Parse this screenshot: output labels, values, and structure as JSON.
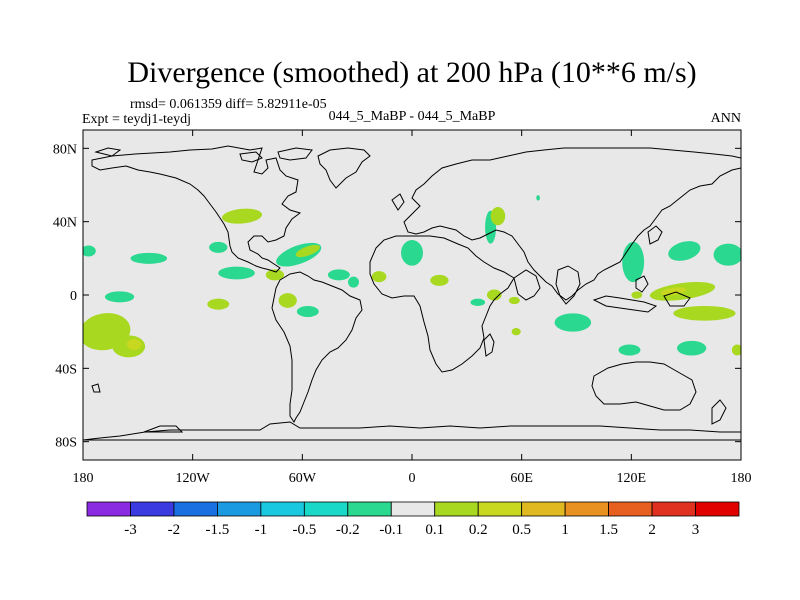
{
  "chart_data": {
    "type": "heatmap",
    "title": "Divergence (smoothed) at 200 hPa (10**6 m/s)",
    "stats_text": "rmsd= 0.061359 diff= 5.82911e-05",
    "experiment_text": "Expt = teydj1-teydj",
    "case_text": "044_5_MaBP - 044_5_MaBP",
    "season_text": "ANN",
    "projection": "cylindrical equidistant",
    "xlim": [
      -180,
      180
    ],
    "ylim": [
      -90,
      90
    ],
    "x_ticks": [
      {
        "value": -180,
        "label": "180"
      },
      {
        "value": -120,
        "label": "120W"
      },
      {
        "value": -60,
        "label": "60W"
      },
      {
        "value": 0,
        "label": "0"
      },
      {
        "value": 60,
        "label": "60E"
      },
      {
        "value": 120,
        "label": "120E"
      },
      {
        "value": 180,
        "label": "180"
      }
    ],
    "y_ticks": [
      {
        "value": 80,
        "label": "80N"
      },
      {
        "value": 40,
        "label": "40N"
      },
      {
        "value": 0,
        "label": "0"
      },
      {
        "value": -40,
        "label": "40S"
      },
      {
        "value": -80,
        "label": "80S"
      }
    ],
    "levels": [
      "-3",
      "-2",
      "-1.5",
      "-1",
      "-0.5",
      "-0.2",
      "-0.1",
      "0.1",
      "0.2",
      "0.5",
      "1",
      "1.5",
      "2",
      "3"
    ],
    "colors": [
      "#8a2be2",
      "#3a3ae0",
      "#1a70e0",
      "#1a9ae0",
      "#1ac8e0",
      "#1ad8c8",
      "#2ad890",
      "#e8e8e8",
      "#a8d820",
      "#c8d820",
      "#e0b820",
      "#e89020",
      "#e86020",
      "#e03020",
      "#e00000"
    ],
    "background_color": "#e8e8e8",
    "regions": [
      {
        "lon": -93,
        "lat": 43,
        "rlon": 11,
        "rlat": 4,
        "rot": -5,
        "color": "#a8d820"
      },
      {
        "lon": -106,
        "lat": 26,
        "rlon": 5,
        "rlat": 3,
        "rot": 0,
        "color": "#2ad890"
      },
      {
        "lon": -62,
        "lat": 22,
        "rlon": 13,
        "rlat": 5,
        "rot": -20,
        "color": "#2ad890"
      },
      {
        "lon": -57,
        "lat": 24,
        "rlon": 7,
        "rlat": 2.5,
        "rot": -20,
        "color": "#a8d820"
      },
      {
        "lon": -144,
        "lat": 20,
        "rlon": 10,
        "rlat": 3,
        "rot": 0,
        "color": "#2ad890"
      },
      {
        "lon": -177,
        "lat": 24,
        "rlon": 4,
        "rlat": 3,
        "rot": 0,
        "color": "#2ad890"
      },
      {
        "lon": -96,
        "lat": 12,
        "rlon": 10,
        "rlat": 3.5,
        "rot": 0,
        "color": "#2ad890"
      },
      {
        "lon": -75,
        "lat": 11,
        "rlon": 5,
        "rlat": 3,
        "rot": 0,
        "color": "#a8d820"
      },
      {
        "lon": -40,
        "lat": 11,
        "rlon": 6,
        "rlat": 3,
        "rot": 0,
        "color": "#2ad890"
      },
      {
        "lon": -32,
        "lat": 7,
        "rlon": 3,
        "rlat": 3,
        "rot": 0,
        "color": "#2ad890"
      },
      {
        "lon": -18,
        "lat": 10,
        "rlon": 4,
        "rlat": 3,
        "rot": 0,
        "color": "#a8d820"
      },
      {
        "lon": -160,
        "lat": -1,
        "rlon": 8,
        "rlat": 3,
        "rot": 0,
        "color": "#2ad890"
      },
      {
        "lon": -106,
        "lat": -5,
        "rlon": 6,
        "rlat": 3,
        "rot": 0,
        "color": "#a8d820"
      },
      {
        "lon": -68,
        "lat": -3,
        "rlon": 5,
        "rlat": 4,
        "rot": 0,
        "color": "#a8d820"
      },
      {
        "lon": -57,
        "lat": -9,
        "rlon": 6,
        "rlat": 3,
        "rot": 0,
        "color": "#2ad890"
      },
      {
        "lon": -168,
        "lat": -20,
        "rlon": 14,
        "rlat": 10,
        "rot": -10,
        "color": "#a8d820"
      },
      {
        "lon": -155,
        "lat": -28,
        "rlon": 9,
        "rlat": 6,
        "rot": 0,
        "color": "#a8d820"
      },
      {
        "lon": -152,
        "lat": -27,
        "rlon": 4,
        "rlat": 3,
        "rot": 0,
        "color": "#c8d820"
      },
      {
        "lon": 0,
        "lat": 23,
        "rlon": 6,
        "rlat": 7,
        "rot": 0,
        "color": "#2ad890"
      },
      {
        "lon": 43,
        "lat": 37,
        "rlon": 3,
        "rlat": 9,
        "rot": 0,
        "color": "#2ad890"
      },
      {
        "lon": 47,
        "lat": 43,
        "rlon": 4,
        "rlat": 5,
        "rot": 0,
        "color": "#a8d820"
      },
      {
        "lon": 69,
        "lat": 53,
        "rlon": 1,
        "rlat": 1.5,
        "rot": 0,
        "color": "#2ad890"
      },
      {
        "lon": 15,
        "lat": 8,
        "rlon": 5,
        "rlat": 3,
        "rot": 0,
        "color": "#a8d820"
      },
      {
        "lon": 36,
        "lat": -4,
        "rlon": 4,
        "rlat": 2,
        "rot": 0,
        "color": "#2ad890"
      },
      {
        "lon": 45,
        "lat": 0,
        "rlon": 4,
        "rlat": 3,
        "rot": 0,
        "color": "#a8d820"
      },
      {
        "lon": 56,
        "lat": -3,
        "rlon": 3,
        "rlat": 2,
        "rot": 0,
        "color": "#a8d820"
      },
      {
        "lon": 88,
        "lat": -15,
        "rlon": 10,
        "rlat": 5,
        "rot": 0,
        "color": "#2ad890"
      },
      {
        "lon": 57,
        "lat": -20,
        "rlon": 2.5,
        "rlat": 2,
        "rot": 0,
        "color": "#a8d820"
      },
      {
        "lon": 121,
        "lat": 18,
        "rlon": 6,
        "rlat": 11,
        "rot": 0,
        "color": "#2ad890"
      },
      {
        "lon": 149,
        "lat": 24,
        "rlon": 9,
        "rlat": 5,
        "rot": -15,
        "color": "#2ad890"
      },
      {
        "lon": 173,
        "lat": 22,
        "rlon": 8,
        "rlat": 6,
        "rot": 0,
        "color": "#2ad890"
      },
      {
        "lon": 148,
        "lat": 2,
        "rlon": 18,
        "rlat": 4.5,
        "rot": -8,
        "color": "#a8d820"
      },
      {
        "lon": 143,
        "lat": 2,
        "rlon": 7,
        "rlat": 2,
        "rot": -8,
        "color": "#c8d820"
      },
      {
        "lon": 123,
        "lat": 0,
        "rlon": 3,
        "rlat": 2,
        "rot": 0,
        "color": "#a8d820"
      },
      {
        "lon": 160,
        "lat": -10,
        "rlon": 17,
        "rlat": 4,
        "rot": 0,
        "color": "#a8d820"
      },
      {
        "lon": 178,
        "lat": -30,
        "rlon": 3,
        "rlat": 3,
        "rot": 0,
        "color": "#a8d820"
      },
      {
        "lon": 153,
        "lat": -29,
        "rlon": 8,
        "rlat": 4,
        "rot": 0,
        "color": "#2ad890"
      },
      {
        "lon": 119,
        "lat": -30,
        "rlon": 6,
        "rlat": 3,
        "rot": 0,
        "color": "#2ad890"
      }
    ]
  }
}
